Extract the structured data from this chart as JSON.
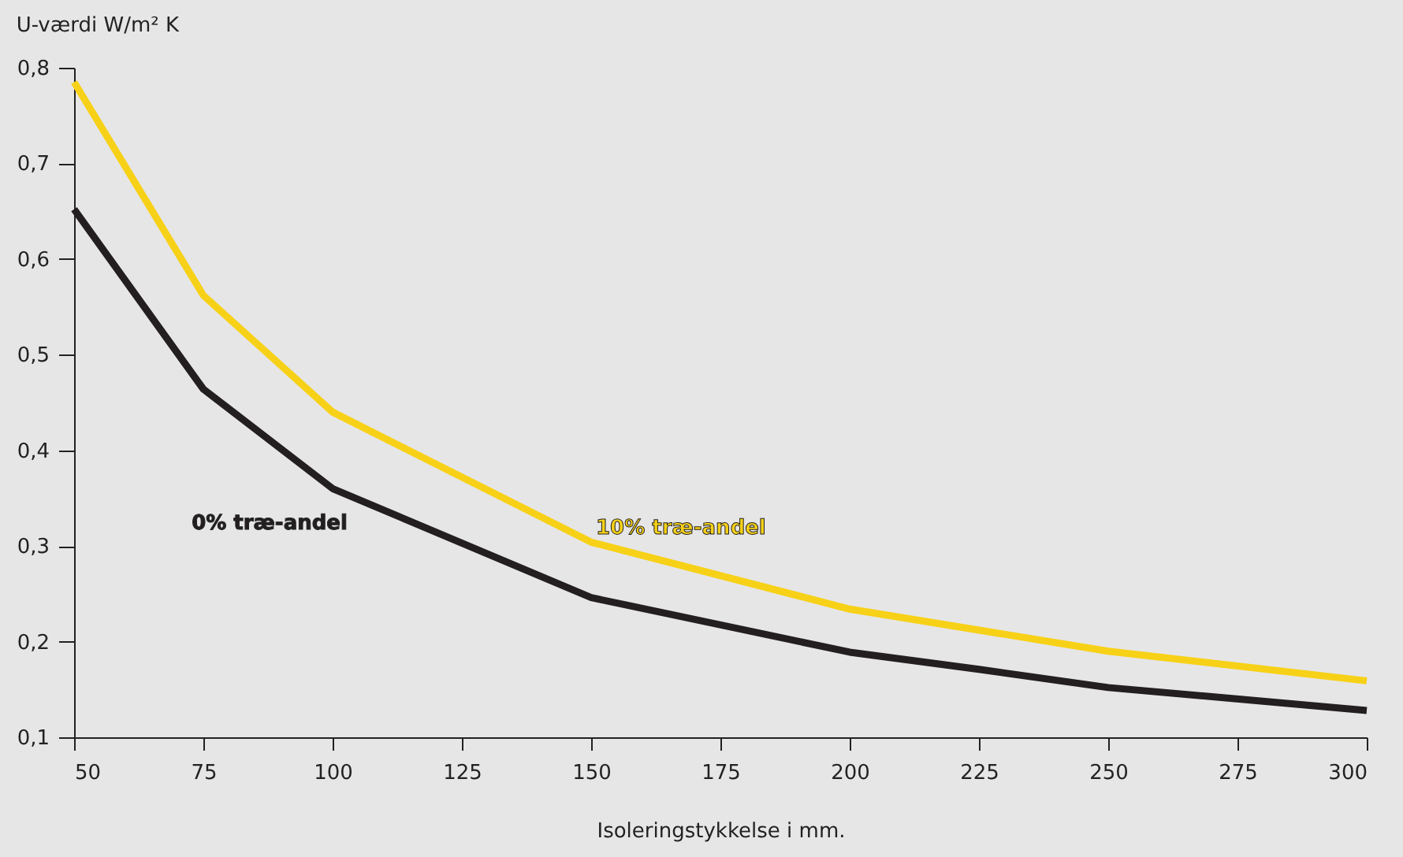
{
  "chart_data": {
    "type": "line",
    "xlabel": "Isoleringstykkelse i mm.",
    "ylabel": "U-værdi W/m² K",
    "xlim": [
      50,
      300
    ],
    "xticks": [
      50,
      75,
      100,
      125,
      150,
      175,
      200,
      225,
      250,
      275,
      300
    ],
    "ylim": [
      0.1,
      0.8
    ],
    "yticks": [
      {
        "value": 0.1,
        "label": "0,1"
      },
      {
        "value": 0.2,
        "label": "0,2"
      },
      {
        "value": 0.3,
        "label": "0,3"
      },
      {
        "value": 0.4,
        "label": "0,4"
      },
      {
        "value": 0.5,
        "label": "0,5"
      },
      {
        "value": 0.6,
        "label": "0,6"
      },
      {
        "value": 0.7,
        "label": "0,7"
      },
      {
        "value": 0.8,
        "label": "0,8"
      }
    ],
    "grid": false,
    "marker": "none",
    "line_style": "solid",
    "series": [
      {
        "name": "10% træ-andel",
        "color": "#f7d117",
        "x": [
          50,
          75,
          100,
          150,
          200,
          250,
          300
        ],
        "values": [
          0.785,
          0.562,
          0.44,
          0.304,
          0.234,
          0.19,
          0.159
        ]
      },
      {
        "name": "0% træ-andel",
        "color": "#231f20",
        "x": [
          50,
          75,
          100,
          150,
          200,
          225,
          250,
          300
        ],
        "values": [
          0.652,
          0.464,
          0.36,
          0.246,
          0.189,
          0.171,
          0.152,
          0.128
        ]
      }
    ]
  }
}
